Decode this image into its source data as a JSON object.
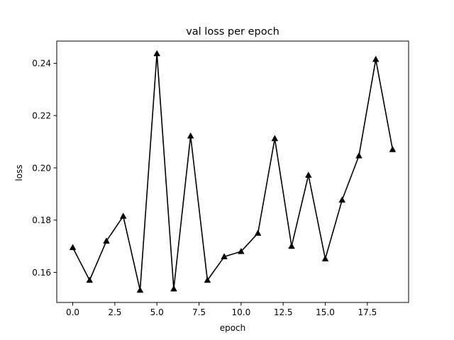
{
  "chart_data": {
    "type": "line",
    "title": "val loss per epoch",
    "xlabel": "epoch",
    "ylabel": "loss",
    "xlim": [
      -0.95,
      19.95
    ],
    "ylim": [
      0.1485,
      0.2485
    ],
    "xticks": [
      0.0,
      2.5,
      5.0,
      7.5,
      10.0,
      12.5,
      15.0,
      17.5
    ],
    "xtick_labels": [
      "0.0",
      "2.5",
      "5.0",
      "7.5",
      "10.0",
      "12.5",
      "15.0",
      "17.5"
    ],
    "yticks": [
      0.16,
      0.18,
      0.2,
      0.22,
      0.24
    ],
    "ytick_labels": [
      "0.16",
      "0.18",
      "0.20",
      "0.22",
      "0.24"
    ],
    "grid": false,
    "series": [
      {
        "color": "#000000",
        "marker": "triangle-up",
        "x": [
          0,
          1,
          2,
          3,
          4,
          5,
          6,
          7,
          8,
          9,
          10,
          11,
          12,
          13,
          14,
          15,
          16,
          17,
          18,
          19
        ],
        "y": [
          0.1695,
          0.157,
          0.172,
          0.1815,
          0.1532,
          0.2437,
          0.1537,
          0.2122,
          0.157,
          0.166,
          0.168,
          0.175,
          0.2112,
          0.17,
          0.1972,
          0.1652,
          0.1877,
          0.2046,
          0.2415,
          0.207
        ]
      }
    ]
  }
}
